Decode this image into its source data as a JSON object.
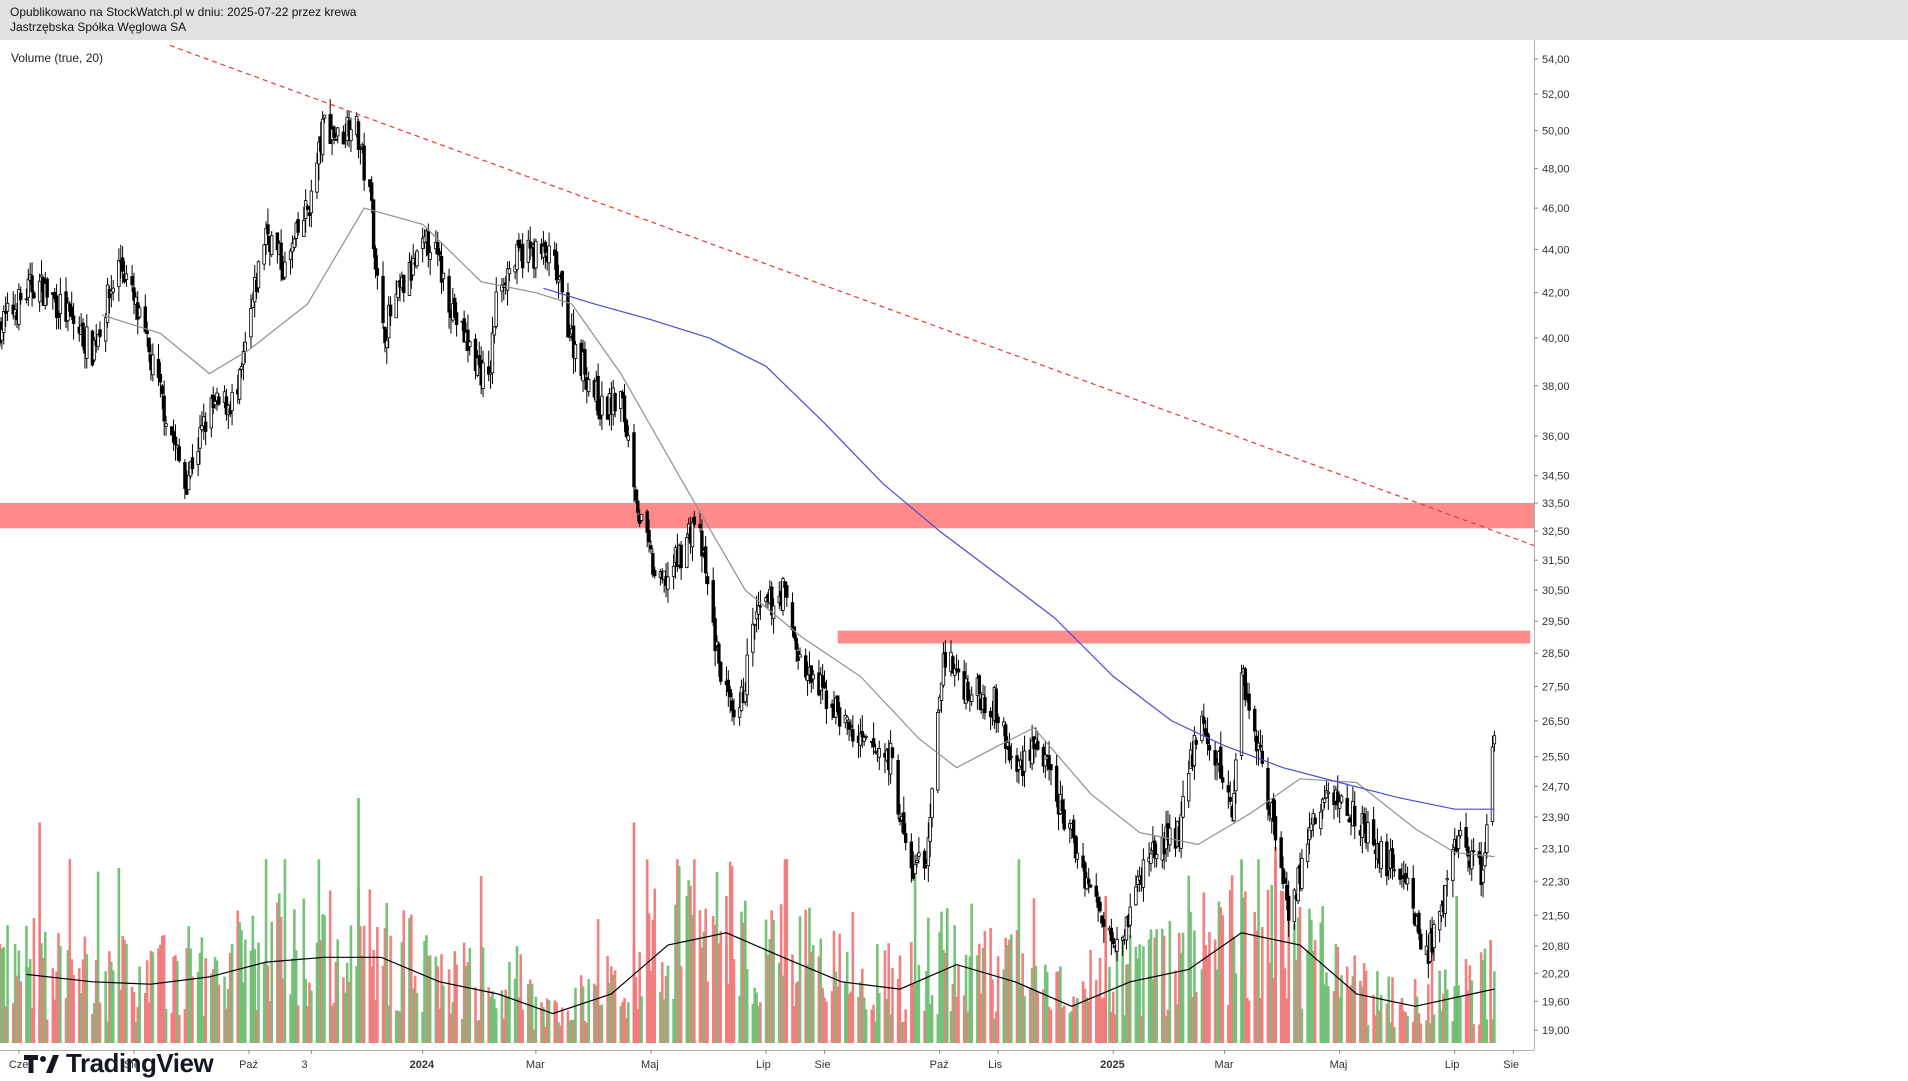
{
  "header": {
    "published": "Opublikowano na StockWatch.pl w dniu: 2025-07-22 przez krewa",
    "company": "Jastrzębska Spółka Węglowa SA"
  },
  "indicator_label": "Volume (true, 20)",
  "logo": {
    "text": "TradingView",
    "icon": "tradingview-logo-icon"
  },
  "colors": {
    "candle": "#000000",
    "volume_up": "#6fbf73",
    "volume_down": "#ef7a7a",
    "zone": "#ff8a8a",
    "trendline": "#e53935",
    "ma_long": "#4b4bd6",
    "ma_short": "#909090",
    "volume_ma": "#000000"
  },
  "chart_data": {
    "type": "candlestick",
    "y_axis_ticks": [
      "54,00",
      "52,00",
      "50,00",
      "48,00",
      "46,00",
      "44,00",
      "42,00",
      "40,00",
      "38,00",
      "36,00",
      "34,50",
      "33,50",
      "32,50",
      "31,50",
      "30,50",
      "29,50",
      "28,50",
      "27,50",
      "26,50",
      "25,50",
      "24,70",
      "23,90",
      "23,10",
      "22,30",
      "21,50",
      "20,80",
      "20,20",
      "19,60",
      "19,00"
    ],
    "x_axis_ticks": [
      {
        "label": "Cze",
        "date": "2023-06-01"
      },
      {
        "label": "Sie",
        "date": "2023-08-01"
      },
      {
        "label": "Paź",
        "date": "2023-10-01"
      },
      {
        "label": "3",
        "date": "2023-11-03"
      },
      {
        "label": "2024",
        "date": "2024-01-01"
      },
      {
        "label": "Mar",
        "date": "2024-03-01"
      },
      {
        "label": "Maj",
        "date": "2024-05-01"
      },
      {
        "label": "Lip",
        "date": "2024-07-01"
      },
      {
        "label": "Sie",
        "date": "2024-08-01"
      },
      {
        "label": "Paź",
        "date": "2024-10-01"
      },
      {
        "label": "Lis",
        "date": "2024-11-01"
      },
      {
        "label": "2025",
        "date": "2025-01-01"
      },
      {
        "label": "Mar",
        "date": "2025-03-01"
      },
      {
        "label": "Maj",
        "date": "2025-05-01"
      },
      {
        "label": "Lip",
        "date": "2025-07-01"
      },
      {
        "label": "Sie",
        "date": "2025-08-01"
      }
    ],
    "x_range": [
      "2023-05-22",
      "2025-08-12"
    ],
    "y_range": [
      18.6,
      55.0
    ],
    "log_scale": true,
    "price_keypoints": [
      [
        "2023-05-22",
        40.5
      ],
      [
        "2023-06-10",
        42.5
      ],
      [
        "2023-06-25",
        41.2
      ],
      [
        "2023-07-10",
        39.5
      ],
      [
        "2023-07-25",
        43.5
      ],
      [
        "2023-08-10",
        39.0
      ],
      [
        "2023-08-28",
        34.2
      ],
      [
        "2023-09-10",
        37.0
      ],
      [
        "2023-09-25",
        37.5
      ],
      [
        "2023-10-10",
        45.0
      ],
      [
        "2023-10-20",
        43.0
      ],
      [
        "2023-11-03",
        46.5
      ],
      [
        "2023-11-10",
        50.5
      ],
      [
        "2023-11-18",
        49.5
      ],
      [
        "2023-11-25",
        51.0
      ],
      [
        "2023-11-30",
        48.5
      ],
      [
        "2023-12-05",
        46.0
      ],
      [
        "2023-12-10",
        40.0
      ],
      [
        "2023-12-20",
        42.0
      ],
      [
        "2024-01-05",
        44.5
      ],
      [
        "2024-01-20",
        40.5
      ],
      [
        "2024-02-05",
        38.0
      ],
      [
        "2024-02-10",
        42.5
      ],
      [
        "2024-02-25",
        44.0
      ],
      [
        "2024-03-10",
        43.5
      ],
      [
        "2024-03-20",
        40.0
      ],
      [
        "2024-04-05",
        37.0
      ],
      [
        "2024-04-15",
        37.5
      ],
      [
        "2024-04-20",
        35.5
      ],
      [
        "2024-04-25",
        33.0
      ],
      [
        "2024-05-05",
        30.5
      ],
      [
        "2024-05-15",
        31.5
      ],
      [
        "2024-05-25",
        33.0
      ],
      [
        "2024-06-05",
        28.5
      ],
      [
        "2024-06-15",
        26.0
      ],
      [
        "2024-06-25",
        29.5
      ],
      [
        "2024-07-10",
        30.5
      ],
      [
        "2024-07-20",
        28.0
      ],
      [
        "2024-08-05",
        27.0
      ],
      [
        "2024-08-20",
        25.8
      ],
      [
        "2024-09-05",
        25.5
      ],
      [
        "2024-09-15",
        22.5
      ],
      [
        "2024-09-25",
        23.0
      ],
      [
        "2024-10-03",
        28.5
      ],
      [
        "2024-10-15",
        27.5
      ],
      [
        "2024-10-30",
        27.0
      ],
      [
        "2024-11-10",
        25.0
      ],
      [
        "2024-11-20",
        26.0
      ],
      [
        "2024-12-05",
        24.0
      ],
      [
        "2024-12-25",
        21.5
      ],
      [
        "2025-01-05",
        21.0
      ],
      [
        "2025-01-20",
        23.0
      ],
      [
        "2025-02-05",
        23.5
      ],
      [
        "2025-02-15",
        26.5
      ],
      [
        "2025-02-28",
        25.0
      ],
      [
        "2025-03-05",
        24.0
      ],
      [
        "2025-03-10",
        28.0
      ],
      [
        "2025-03-20",
        25.5
      ],
      [
        "2025-04-05",
        21.5
      ],
      [
        "2025-04-15",
        23.5
      ],
      [
        "2025-04-25",
        24.5
      ],
      [
        "2025-05-10",
        24.0
      ],
      [
        "2025-05-20",
        23.0
      ],
      [
        "2025-06-05",
        22.5
      ],
      [
        "2025-06-15",
        20.5
      ],
      [
        "2025-06-25",
        21.5
      ],
      [
        "2025-07-01",
        23.5
      ],
      [
        "2025-07-10",
        22.8
      ],
      [
        "2025-07-16",
        22.5
      ],
      [
        "2025-07-22",
        26.0
      ]
    ],
    "ma_short_keypoints": [
      [
        "2023-07-15",
        41.0
      ],
      [
        "2023-08-15",
        40.2
      ],
      [
        "2023-09-10",
        38.5
      ],
      [
        "2023-10-01",
        39.5
      ],
      [
        "2023-11-01",
        41.5
      ],
      [
        "2023-12-01",
        46.0
      ],
      [
        "2024-01-01",
        45.2
      ],
      [
        "2024-02-01",
        42.5
      ],
      [
        "2024-03-01",
        42.0
      ],
      [
        "2024-03-20",
        41.5
      ],
      [
        "2024-04-15",
        38.5
      ],
      [
        "2024-05-20",
        34.0
      ],
      [
        "2024-06-20",
        30.5
      ],
      [
        "2024-07-20",
        29.0
      ],
      [
        "2024-08-20",
        27.8
      ],
      [
        "2024-09-20",
        26.0
      ],
      [
        "2024-10-10",
        25.2
      ],
      [
        "2024-11-01",
        25.8
      ],
      [
        "2024-11-20",
        26.3
      ],
      [
        "2024-12-20",
        24.5
      ],
      [
        "2025-01-15",
        23.5
      ],
      [
        "2025-02-15",
        23.2
      ],
      [
        "2025-03-15",
        24.0
      ],
      [
        "2025-04-10",
        24.9
      ],
      [
        "2025-05-10",
        24.8
      ],
      [
        "2025-06-10",
        23.6
      ],
      [
        "2025-07-01",
        23.0
      ],
      [
        "2025-07-22",
        22.9
      ]
    ],
    "ma_long_keypoints": [
      [
        "2024-03-05",
        42.2
      ],
      [
        "2024-04-01",
        41.5
      ],
      [
        "2024-05-01",
        40.8
      ],
      [
        "2024-06-01",
        40.0
      ],
      [
        "2024-07-01",
        38.8
      ],
      [
        "2024-08-01",
        36.5
      ],
      [
        "2024-09-01",
        34.2
      ],
      [
        "2024-10-01",
        32.5
      ],
      [
        "2024-11-01",
        31.0
      ],
      [
        "2024-12-01",
        29.6
      ],
      [
        "2025-01-01",
        27.8
      ],
      [
        "2025-02-01",
        26.5
      ],
      [
        "2025-03-01",
        25.8
      ],
      [
        "2025-04-01",
        25.2
      ],
      [
        "2025-05-01",
        24.8
      ],
      [
        "2025-06-01",
        24.4
      ],
      [
        "2025-07-01",
        24.1
      ],
      [
        "2025-07-22",
        24.1
      ]
    ],
    "volume_ma_keypoints": [
      [
        "2023-06-05",
        0.28
      ],
      [
        "2023-07-10",
        0.25
      ],
      [
        "2023-08-10",
        0.24
      ],
      [
        "2023-09-10",
        0.27
      ],
      [
        "2023-10-10",
        0.33
      ],
      [
        "2023-11-10",
        0.35
      ],
      [
        "2023-12-10",
        0.35
      ],
      [
        "2024-01-10",
        0.25
      ],
      [
        "2024-02-10",
        0.2
      ],
      [
        "2024-03-10",
        0.12
      ],
      [
        "2024-04-10",
        0.2
      ],
      [
        "2024-05-10",
        0.4
      ],
      [
        "2024-06-10",
        0.45
      ],
      [
        "2024-07-10",
        0.35
      ],
      [
        "2024-08-10",
        0.25
      ],
      [
        "2024-09-10",
        0.22
      ],
      [
        "2024-10-10",
        0.32
      ],
      [
        "2024-11-10",
        0.25
      ],
      [
        "2024-12-10",
        0.15
      ],
      [
        "2025-01-10",
        0.25
      ],
      [
        "2025-02-10",
        0.3
      ],
      [
        "2025-03-10",
        0.45
      ],
      [
        "2025-04-10",
        0.4
      ],
      [
        "2025-05-10",
        0.2
      ],
      [
        "2025-06-10",
        0.15
      ],
      [
        "2025-07-10",
        0.2
      ],
      [
        "2025-07-22",
        0.22
      ]
    ],
    "volume_spikes": [
      [
        "2023-06-12",
        0.9
      ],
      [
        "2023-11-28",
        1.0
      ],
      [
        "2024-04-22",
        0.9
      ],
      [
        "2024-05-20",
        0.6
      ],
      [
        "2024-06-10",
        0.6
      ],
      [
        "2024-10-05",
        0.55
      ],
      [
        "2024-12-28",
        0.6
      ],
      [
        "2025-03-10",
        0.75
      ],
      [
        "2025-03-28",
        0.8
      ],
      [
        "2025-07-02",
        0.6
      ],
      [
        "2025-07-20",
        0.42
      ]
    ],
    "resistance_zones": [
      {
        "from": "2023-05-22",
        "to": "2025-08-12",
        "low": 32.6,
        "high": 33.5
      },
      {
        "from": "2024-08-08",
        "to": "2025-08-10",
        "low": 28.8,
        "high": 29.2
      }
    ],
    "trendline": {
      "from": [
        "2023-08-20",
        54.8
      ],
      "to": [
        "2025-08-12",
        32.0
      ]
    }
  }
}
